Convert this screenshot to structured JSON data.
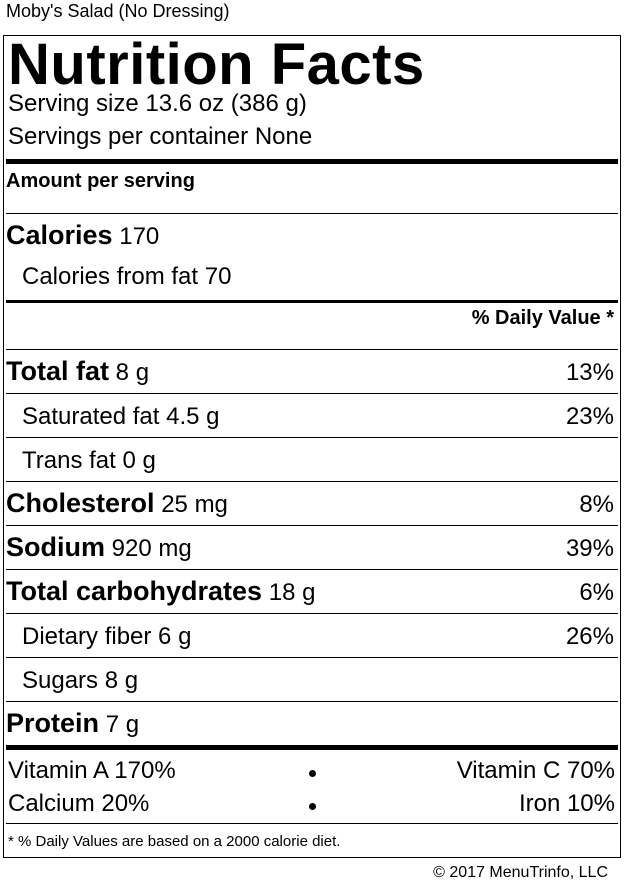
{
  "item_name": "Moby's Salad (No Dressing)",
  "label": {
    "title": "Nutrition Facts",
    "serving_size_label": "Serving size",
    "serving_size_value": "13.6 oz (386 g)",
    "servings_label": "Servings per container",
    "servings_value": "None",
    "amount_per_serving": "Amount per serving",
    "calories_label": "Calories",
    "calories_value": "170",
    "calories_from_fat_label": "Calories from fat",
    "calories_from_fat_value": "70",
    "daily_value_header": "% Daily Value *",
    "nutrients": [
      {
        "name": "Total fat",
        "amount": "8 g",
        "dv": "13%"
      },
      {
        "name": "Saturated fat",
        "amount": "4.5 g",
        "dv": "23%"
      },
      {
        "name": "Trans fat",
        "amount": "0 g",
        "dv": ""
      },
      {
        "name": "Cholesterol",
        "amount": "25 mg",
        "dv": "8%"
      },
      {
        "name": "Sodium",
        "amount": "920 mg",
        "dv": "39%"
      },
      {
        "name": "Total carbohydrates",
        "amount": "18 g",
        "dv": "6%"
      },
      {
        "name": "Dietary fiber",
        "amount": "6 g",
        "dv": "26%"
      },
      {
        "name": "Sugars",
        "amount": "8 g",
        "dv": ""
      },
      {
        "name": "Protein",
        "amount": "7 g",
        "dv": ""
      }
    ],
    "vitamins": [
      {
        "left": "Vitamin A 170%",
        "right": "Vitamin C 70%"
      },
      {
        "left": "Calcium 20%",
        "right": "Iron 10%"
      }
    ],
    "footnote": "* % Daily Values are based on a 2000 calorie diet."
  },
  "copyright": "© 2017 MenuTrinfo, LLC"
}
